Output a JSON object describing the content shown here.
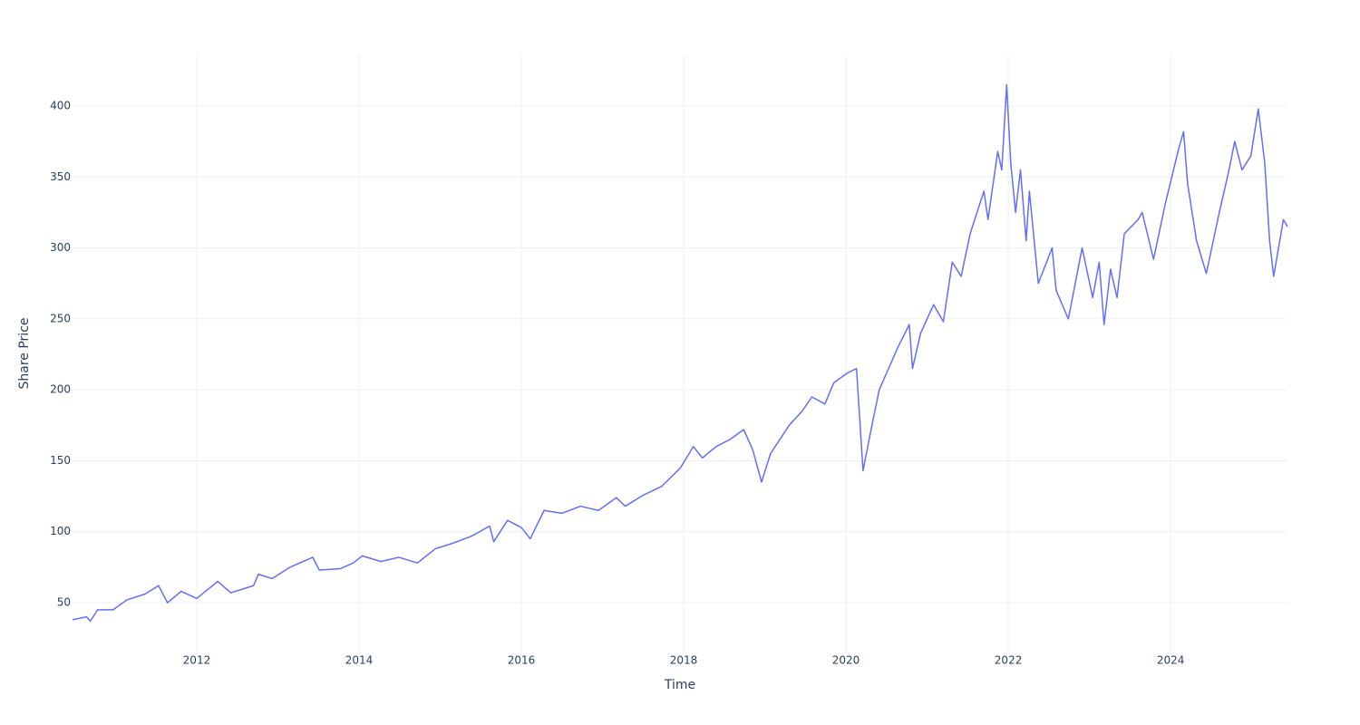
{
  "chart_data": {
    "type": "line",
    "x_label": "Time",
    "y_label": "Share Price",
    "x": [
      2010.47,
      2010.64,
      2010.69,
      2010.78,
      2010.97,
      2011.14,
      2011.36,
      2011.53,
      2011.64,
      2011.81,
      2012.0,
      2012.26,
      2012.42,
      2012.7,
      2012.76,
      2012.93,
      2013.15,
      2013.43,
      2013.51,
      2013.77,
      2013.93,
      2014.04,
      2014.27,
      2014.49,
      2014.72,
      2014.94,
      2015.16,
      2015.39,
      2015.61,
      2015.66,
      2015.83,
      2016.0,
      2016.11,
      2016.28,
      2016.5,
      2016.73,
      2016.95,
      2017.17,
      2017.28,
      2017.51,
      2017.73,
      2017.96,
      2018.12,
      2018.23,
      2018.4,
      2018.57,
      2018.74,
      2018.85,
      2018.96,
      2019.07,
      2019.3,
      2019.46,
      2019.58,
      2019.74,
      2019.85,
      2020.02,
      2020.13,
      2020.21,
      2020.32,
      2020.41,
      2020.64,
      2020.78,
      2020.82,
      2020.92,
      2021.08,
      2021.2,
      2021.31,
      2021.42,
      2021.53,
      2021.7,
      2021.75,
      2021.87,
      2021.92,
      2021.98,
      2022.03,
      2022.09,
      2022.15,
      2022.22,
      2022.26,
      2022.37,
      2022.54,
      2022.59,
      2022.74,
      2022.91,
      2023.04,
      2023.12,
      2023.18,
      2023.26,
      2023.34,
      2023.43,
      2023.6,
      2023.65,
      2023.79,
      2023.93,
      2024.1,
      2024.16,
      2024.21,
      2024.32,
      2024.44,
      2024.6,
      2024.72,
      2024.79,
      2024.88,
      2024.99,
      2025.08,
      2025.16,
      2025.22,
      2025.27,
      2025.39,
      2025.44
    ],
    "series": [
      {
        "name": "Share Price",
        "color": "#636efa",
        "values": [
          38,
          40,
          37,
          45,
          45,
          52,
          56,
          62,
          50,
          58,
          53,
          65,
          57,
          62,
          70,
          67,
          75,
          82,
          73,
          74,
          78,
          83,
          79,
          82,
          78,
          88,
          92,
          97,
          104,
          93,
          108,
          103,
          95,
          115,
          113,
          118,
          115,
          124,
          118,
          126,
          132,
          145,
          160,
          152,
          160,
          165,
          172,
          158,
          135,
          155,
          175,
          185,
          195,
          190,
          205,
          212,
          215,
          143,
          175,
          200,
          230,
          246,
          215,
          240,
          260,
          248,
          290,
          280,
          310,
          340,
          320,
          368,
          355,
          415,
          360,
          325,
          355,
          305,
          340,
          275,
          300,
          270,
          250,
          300,
          265,
          290,
          246,
          285,
          265,
          310,
          320,
          325,
          292,
          330,
          370,
          382,
          345,
          305,
          282,
          325,
          355,
          375,
          355,
          365,
          398,
          360,
          305,
          280,
          320,
          315
        ]
      }
    ],
    "xlim": [
      2010.47,
      2025.44
    ],
    "xticks": [
      2012,
      2014,
      2016,
      2018,
      2020,
      2022,
      2024
    ],
    "ylim": [
      14.9,
      436.4
    ],
    "yticks": [
      50,
      100,
      150,
      200,
      250,
      300,
      350,
      400
    ],
    "grid": true
  }
}
